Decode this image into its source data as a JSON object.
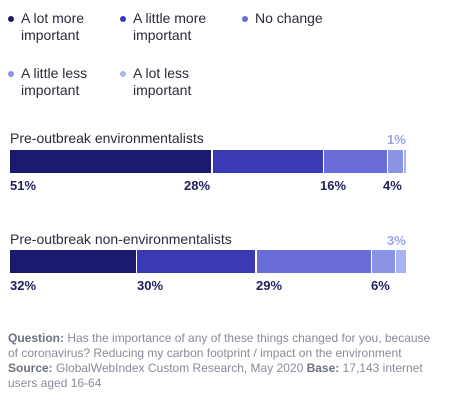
{
  "chart_data": {
    "type": "bar",
    "stacked": true,
    "orientation": "horizontal",
    "legend_position": "top",
    "categories": [
      "Pre-outbreak environmentalists",
      "Pre-outbreak non-environmentalists"
    ],
    "series": [
      {
        "name": "A lot more important",
        "color": "#1c1a6e",
        "values": [
          51,
          32
        ]
      },
      {
        "name": "A little more important",
        "color": "#3b3ab5",
        "values": [
          28,
          30
        ]
      },
      {
        "name": "No change",
        "color": "#6a6dd9",
        "values": [
          16,
          29
        ]
      },
      {
        "name": "A little less important",
        "color": "#8b93e6",
        "values": [
          4,
          6
        ]
      },
      {
        "name": "A lot less important",
        "color": "#a9b3f2",
        "values": [
          1,
          3
        ]
      }
    ],
    "value_labels": [
      {
        "primary": [
          "51%",
          "28%",
          "16%",
          "4%"
        ],
        "top": "1%"
      },
      {
        "primary": [
          "32%",
          "30%",
          "29%",
          "6%"
        ],
        "top": "3%"
      }
    ]
  },
  "footnote": {
    "question_label": "Question:",
    "question_text": " Has the importance of any of these things changed for you, because of coronavirus? Reducing my carbon footprint / impact on the environment ",
    "source_label": "Source:",
    "source_text": " GlobalWebIndex Custom Research, May 2020 ",
    "base_label": "Base:",
    "base_text": " 17,143 internet users aged 16-64"
  }
}
